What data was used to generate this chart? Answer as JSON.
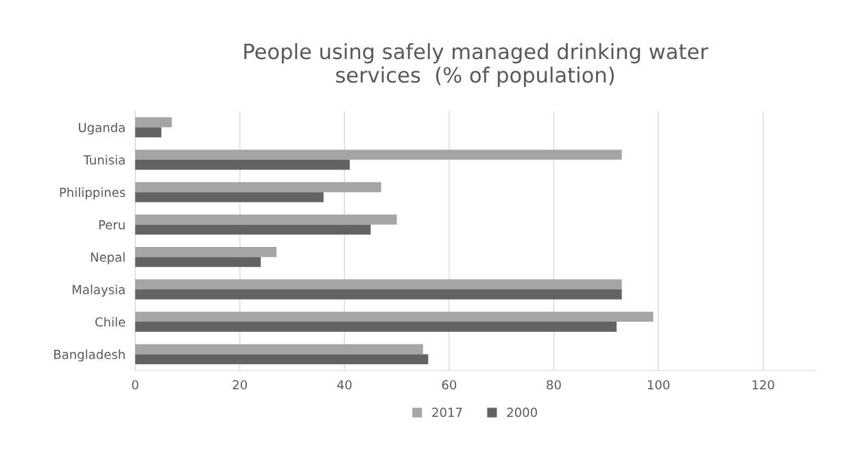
{
  "chart_data": {
    "type": "bar",
    "orientation": "horizontal",
    "title": "People using safely managed drinking water\nservices  (% of population)",
    "categories": [
      "Uganda",
      "Tunisia",
      "Philippines",
      "Peru",
      "Nepal",
      "Malaysia",
      "Chile",
      "Bangladesh"
    ],
    "series": [
      {
        "name": "2017",
        "color": "#a5a5a5",
        "values": [
          7,
          93,
          47,
          50,
          27,
          93,
          99,
          55
        ]
      },
      {
        "name": "2000",
        "color": "#636363",
        "values": [
          5,
          41,
          36,
          45,
          24,
          93,
          92,
          56
        ]
      }
    ],
    "xlim": [
      0,
      130
    ],
    "xticks": [
      0,
      20,
      40,
      60,
      80,
      100,
      120
    ],
    "grid": "x",
    "legend": "bottom"
  }
}
